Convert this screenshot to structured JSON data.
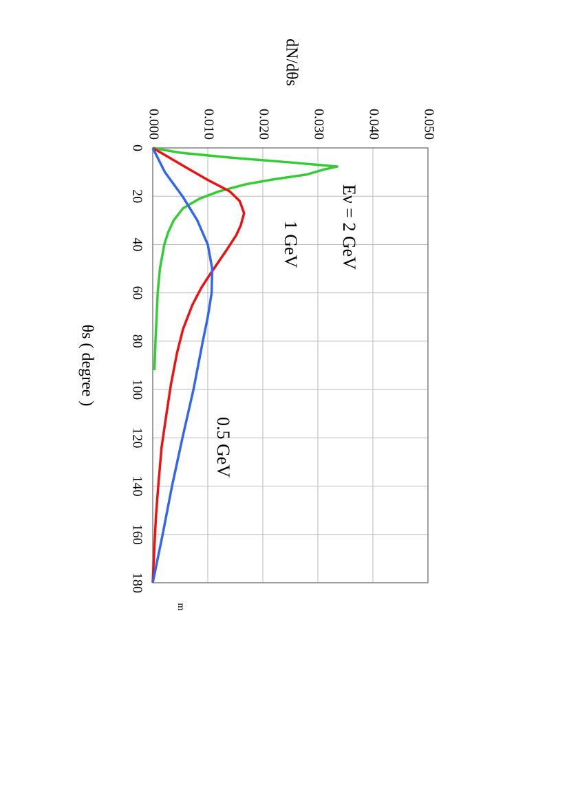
{
  "chart_data": {
    "type": "line",
    "y_label": "dN/dθs",
    "x_label": "θs  ( degree )",
    "xlim": [
      0,
      180
    ],
    "xticks": [
      0,
      20,
      40,
      60,
      80,
      100,
      120,
      140,
      160,
      180
    ],
    "ylim": [
      0,
      0.05
    ],
    "yticks": [
      {
        "value": 0,
        "label": "0.000"
      },
      {
        "value": 0.01,
        "label": "0.010"
      },
      {
        "value": 0.02,
        "label": "0.020"
      },
      {
        "value": 0.03,
        "label": "0.030"
      },
      {
        "value": 0.04,
        "label": "0.040"
      },
      {
        "value": 0.05,
        "label": "0.050"
      }
    ],
    "grid": true,
    "annotations": [
      "Eν = 2 GeV",
      "1 GeV",
      "0.5 GeV",
      "m"
    ],
    "series": [
      {
        "color": "#33cc33",
        "x": [
          0,
          2,
          4,
          6,
          7.7,
          9,
          11,
          13,
          15,
          18,
          21,
          25,
          30,
          35,
          40,
          50,
          60,
          70,
          80,
          92
        ],
        "values": [
          0,
          0.005,
          0.014,
          0.025,
          0.0335,
          0.031,
          0.028,
          0.022,
          0.017,
          0.012,
          0.0085,
          0.0055,
          0.0038,
          0.0028,
          0.0021,
          0.0013,
          0.0009,
          0.0007,
          0.0005,
          0.0003
        ]
      },
      {
        "color": "#ee1111",
        "x": [
          0,
          4,
          8,
          13,
          18,
          22,
          27,
          32,
          36,
          42,
          47,
          52,
          58,
          65,
          75,
          85,
          98,
          110,
          124,
          140,
          152,
          165,
          180
        ],
        "values": [
          0,
          0.003,
          0.006,
          0.0098,
          0.014,
          0.0158,
          0.0166,
          0.016,
          0.0152,
          0.0135,
          0.012,
          0.0105,
          0.0088,
          0.0072,
          0.0055,
          0.0044,
          0.0033,
          0.0025,
          0.0016,
          0.001,
          0.0006,
          0.0003,
          0
        ]
      },
      {
        "color": "#3366ee",
        "x": [
          0,
          10,
          20,
          30,
          40,
          50,
          60,
          70,
          80,
          100,
          120,
          140,
          160,
          180
        ],
        "values": [
          0,
          0.0022,
          0.0054,
          0.0081,
          0.01,
          0.0108,
          0.0107,
          0.01,
          0.0091,
          0.0074,
          0.0054,
          0.0035,
          0.0018,
          0
        ]
      }
    ]
  }
}
